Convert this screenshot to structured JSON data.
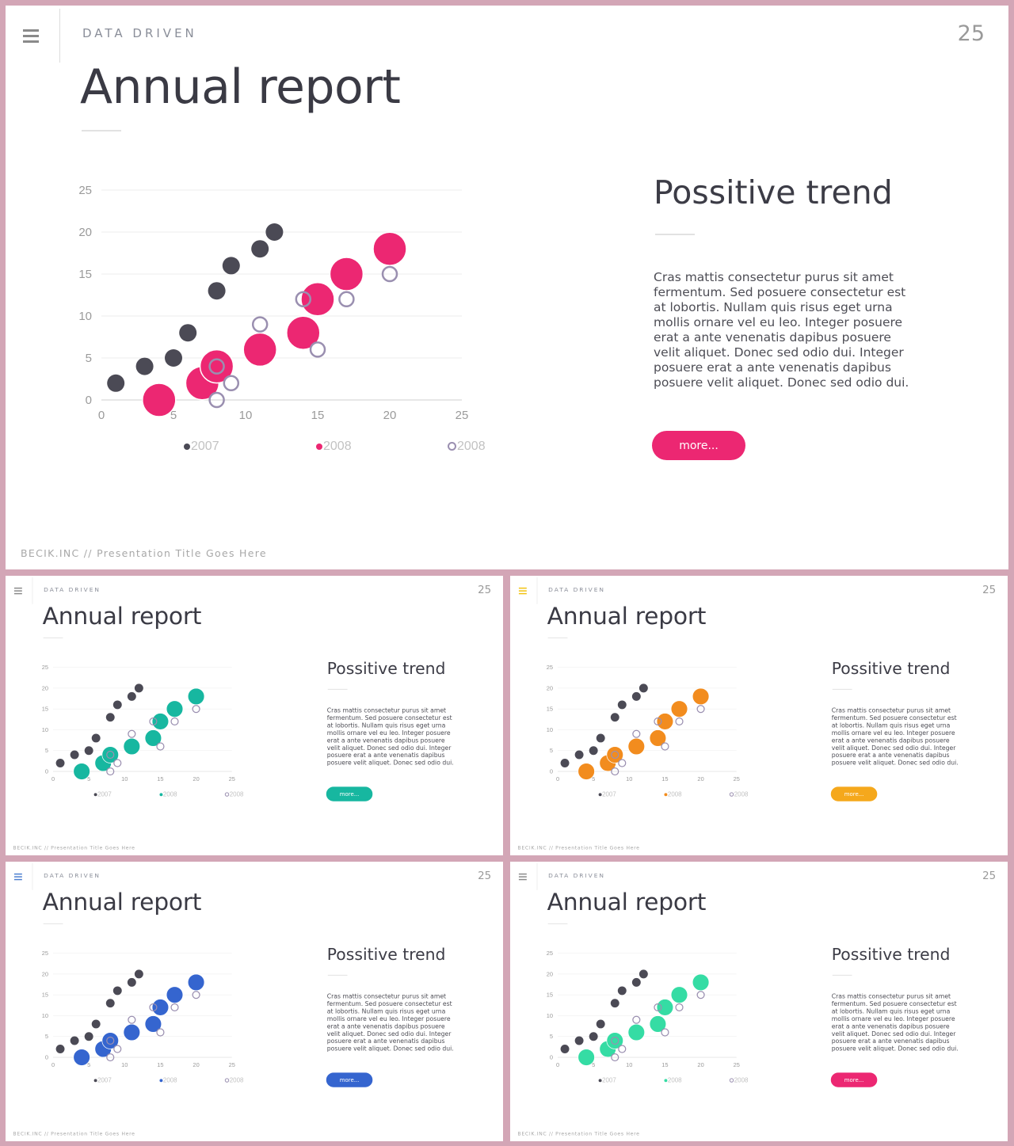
{
  "slide": {
    "section_label": "DATA DRIVEN",
    "page_number": "25",
    "title": "Annual report",
    "subtitle": "Possitive trend",
    "body": "Cras mattis consectetur purus sit amet fermentum. Sed posuere consectetur est at lobortis. Nullam quis risus eget urna mollis ornare vel eu leo. Integer posuere erat a ante venenatis dapibus posuere velit aliquet. Donec sed odio dui. Integer posuere erat a ante venenatis dapibus posuere velit aliquet. Donec sed odio dui.",
    "button_label": "more...",
    "footer": "BECIK.INC  //  Presentation  Title  Goes  Here",
    "icons": {
      "menu": "hamburger-menu-icon"
    }
  },
  "variants": [
    {
      "accent": "#ec2772",
      "button": "#ec2772",
      "menu_icon_color": "#8a8a8a"
    },
    {
      "accent": "#17b7a0",
      "button": "#17b7a0",
      "menu_icon_color": "#8a8a8a"
    },
    {
      "accent": "#f28c1e",
      "button": "#f5a81c",
      "menu_icon_color": "#f2c20f"
    },
    {
      "accent": "#3565cf",
      "button": "#3565cf",
      "menu_icon_color": "#4c7fd0"
    },
    {
      "accent": "#35dca4",
      "button": "#ec2772",
      "menu_icon_color": "#8a8a8a"
    }
  ],
  "colors": {
    "series_2007": "#4b4a55",
    "ring_2008": "#9a8fb0"
  },
  "chart_data": {
    "type": "scatter",
    "xlim": [
      0,
      25
    ],
    "ylim": [
      0,
      25
    ],
    "x_ticks": [
      "0",
      "5",
      "10",
      "15",
      "20",
      "25"
    ],
    "y_ticks": [
      "0",
      "5",
      "10",
      "15",
      "20",
      "25"
    ],
    "grid": true,
    "legend_position": "bottom",
    "series": [
      {
        "name": "2007",
        "style": "dot",
        "points": [
          [
            1,
            2
          ],
          [
            3,
            4
          ],
          [
            5,
            5
          ],
          [
            6,
            8
          ],
          [
            8,
            13
          ],
          [
            9,
            16
          ],
          [
            11,
            18
          ],
          [
            12,
            20
          ]
        ]
      },
      {
        "name": "2008",
        "style": "bubble",
        "points": [
          [
            4,
            0
          ],
          [
            7,
            2
          ],
          [
            8,
            4
          ],
          [
            11,
            6
          ],
          [
            14,
            8
          ],
          [
            15,
            12
          ],
          [
            17,
            15
          ],
          [
            20,
            18
          ]
        ]
      },
      {
        "name": "2008",
        "style": "ring",
        "points": [
          [
            8,
            0
          ],
          [
            8,
            4
          ],
          [
            9,
            2
          ],
          [
            11,
            9
          ],
          [
            14,
            12
          ],
          [
            15,
            6
          ],
          [
            17,
            12
          ],
          [
            20,
            15
          ]
        ]
      }
    ]
  }
}
